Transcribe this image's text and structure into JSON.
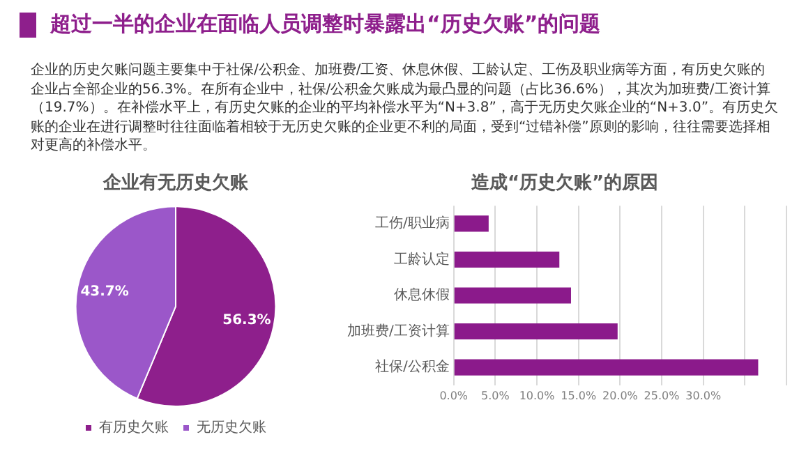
{
  "chart_data": [
    {
      "type": "other",
      "title": "超过一半的企业在面临人员调整时暴露出“历史欠账”的问题",
      "annotations": [
        "企业的历史欠账问题主要集中于社保/公积金、加班费/工资、休息休假、工龄认定、工伤及职业病等方面，有历史欠账的企业占全部企业的56.3%。在所有企业中，社保/公积金欠账成为最凸显的问题（占比36.6%），其次为加班费/工资计算（19.7%）。在补偿水平上，有历史欠账的企业的平均补偿水平为“N+3.8”，高于无历史欠账企业的“N+3.0”。有历史欠账的企业在进行调整时往往面临着相较于无历史欠账的企业更不利的局面，受到“过错补偿”原则的影响，往往需要选择相对更高的补偿水平。"
      ]
    },
    {
      "type": "pie",
      "title": "企业有无历史欠账",
      "categories": [
        "有历史欠账",
        "无历史欠账"
      ],
      "values": [
        56.3,
        43.7
      ],
      "colors": [
        "#8e1f8c",
        "#9b57c9"
      ],
      "value_labels": [
        "56.3%",
        "43.7%"
      ],
      "legend": "bottom"
    },
    {
      "type": "bar",
      "title": "造成“历史欠账”的原因",
      "orientation": "horizontal",
      "categories": [
        "工伤/职业病",
        "工龄认定",
        "休息休假",
        "加班费/工资计算",
        "社保/公积金"
      ],
      "values": [
        4.2,
        12.7,
        14.1,
        19.7,
        36.6
      ],
      "color": "#8b1a8b",
      "xlim": [
        0,
        40
      ],
      "xticks": [
        {
          "value": 0,
          "label": "0.0%"
        },
        {
          "value": 5,
          "label": "5.0%"
        },
        {
          "value": 10,
          "label": "10.0%"
        },
        {
          "value": 15,
          "label": "15.0%"
        },
        {
          "value": 20,
          "label": "20.0%"
        },
        {
          "value": 25,
          "label": "25.0%"
        },
        {
          "value": 30,
          "label": "30.0%"
        },
        {
          "value": 35,
          "label": null
        },
        {
          "value": 40,
          "label": null
        }
      ],
      "grid": "x"
    }
  ]
}
